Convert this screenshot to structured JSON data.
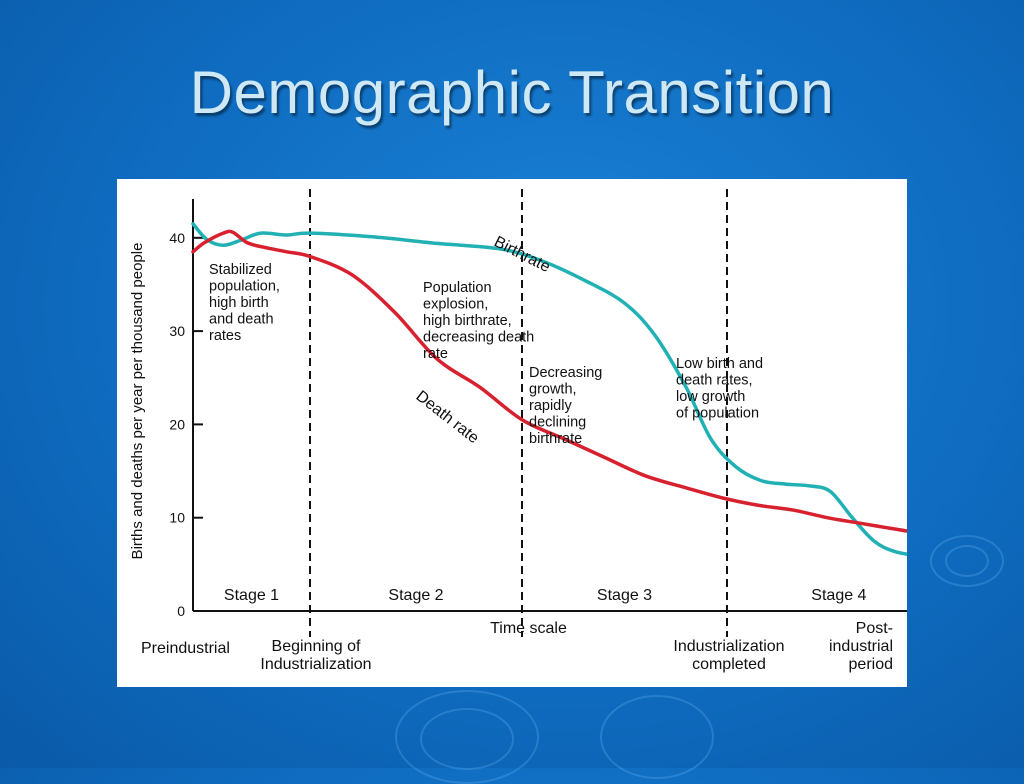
{
  "slide": {
    "title": "Demographic Transition"
  },
  "colors": {
    "background": "#0f6cc0",
    "title": "#cfe8f6",
    "birthrate": "#21b1b5",
    "death_rate": "#d8212f"
  },
  "chart_data": {
    "type": "line",
    "ylabel": "Births and deaths per year per thousand people",
    "xlabel": "Time scale",
    "ylim": [
      0,
      45
    ],
    "yticks": [
      0,
      10,
      20,
      30,
      40
    ],
    "grid": false,
    "x_positions": [
      {
        "label": "Preindustrial",
        "x": 0
      },
      {
        "label": "Beginning of Industrialization",
        "x": 1
      },
      {
        "label": "Industrialization completed",
        "x": 3
      },
      {
        "label": "Post-industrial period",
        "x": 4
      }
    ],
    "stage_boundaries": [
      1,
      2,
      3
    ],
    "stages": [
      "Stage 1",
      "Stage 2",
      "Stage 3",
      "Stage 4"
    ],
    "series": [
      {
        "name": "Birthrate",
        "points": [
          [
            0,
            41.5
          ],
          [
            0.12,
            39.8
          ],
          [
            0.26,
            39.2
          ],
          [
            0.42,
            39.8
          ],
          [
            0.58,
            40.5
          ],
          [
            0.8,
            40.3
          ],
          [
            1.0,
            40.5
          ],
          [
            1.3,
            40.1
          ],
          [
            1.6,
            39.4
          ],
          [
            1.9,
            38.8
          ],
          [
            2.1,
            37.5
          ],
          [
            2.3,
            35.5
          ],
          [
            2.5,
            33.0
          ],
          [
            2.65,
            29.5
          ],
          [
            2.8,
            24.0
          ],
          [
            2.92,
            18.5
          ],
          [
            3.05,
            15.5
          ],
          [
            3.2,
            14.0
          ],
          [
            3.35,
            13.6
          ],
          [
            3.5,
            13.4
          ],
          [
            3.62,
            12.8
          ],
          [
            3.75,
            10.0
          ],
          [
            3.88,
            7.5
          ],
          [
            4.0,
            6.4
          ],
          [
            4.15,
            5.9
          ],
          [
            4.34,
            5.5
          ]
        ]
      },
      {
        "name": "Death rate",
        "points": [
          [
            0,
            38.5
          ],
          [
            0.1,
            39.5
          ],
          [
            0.26,
            40.5
          ],
          [
            0.34,
            40.6
          ],
          [
            0.46,
            39.5
          ],
          [
            0.6,
            39.0
          ],
          [
            0.8,
            38.5
          ],
          [
            1.0,
            38.0
          ],
          [
            1.2,
            36.0
          ],
          [
            1.4,
            32.0
          ],
          [
            1.6,
            27.0
          ],
          [
            1.8,
            24.0
          ],
          [
            2.0,
            20.5
          ],
          [
            2.2,
            18.5
          ],
          [
            2.4,
            16.5
          ],
          [
            2.6,
            14.5
          ],
          [
            2.8,
            13.2
          ],
          [
            3.0,
            12.0
          ],
          [
            3.2,
            11.3
          ],
          [
            3.4,
            10.8
          ],
          [
            3.6,
            10.0
          ],
          [
            3.8,
            9.4
          ],
          [
            4.0,
            8.8
          ],
          [
            4.2,
            8.2
          ],
          [
            4.34,
            7.6
          ]
        ]
      }
    ],
    "annotations": [
      {
        "id": "stage1",
        "lines": [
          "Stabilized",
          "population,",
          "high birth",
          "and death",
          "rates"
        ]
      },
      {
        "id": "stage2",
        "lines": [
          "Population",
          "explosion,",
          "high birthrate,",
          "decreasing death",
          "rate"
        ]
      },
      {
        "id": "stage3",
        "lines": [
          "Decreasing",
          "growth,",
          "rapidly",
          "declining",
          "birthrate"
        ]
      },
      {
        "id": "stage4",
        "lines": [
          "Low birth and",
          "death rates,",
          "low growth",
          "of population"
        ]
      }
    ]
  }
}
